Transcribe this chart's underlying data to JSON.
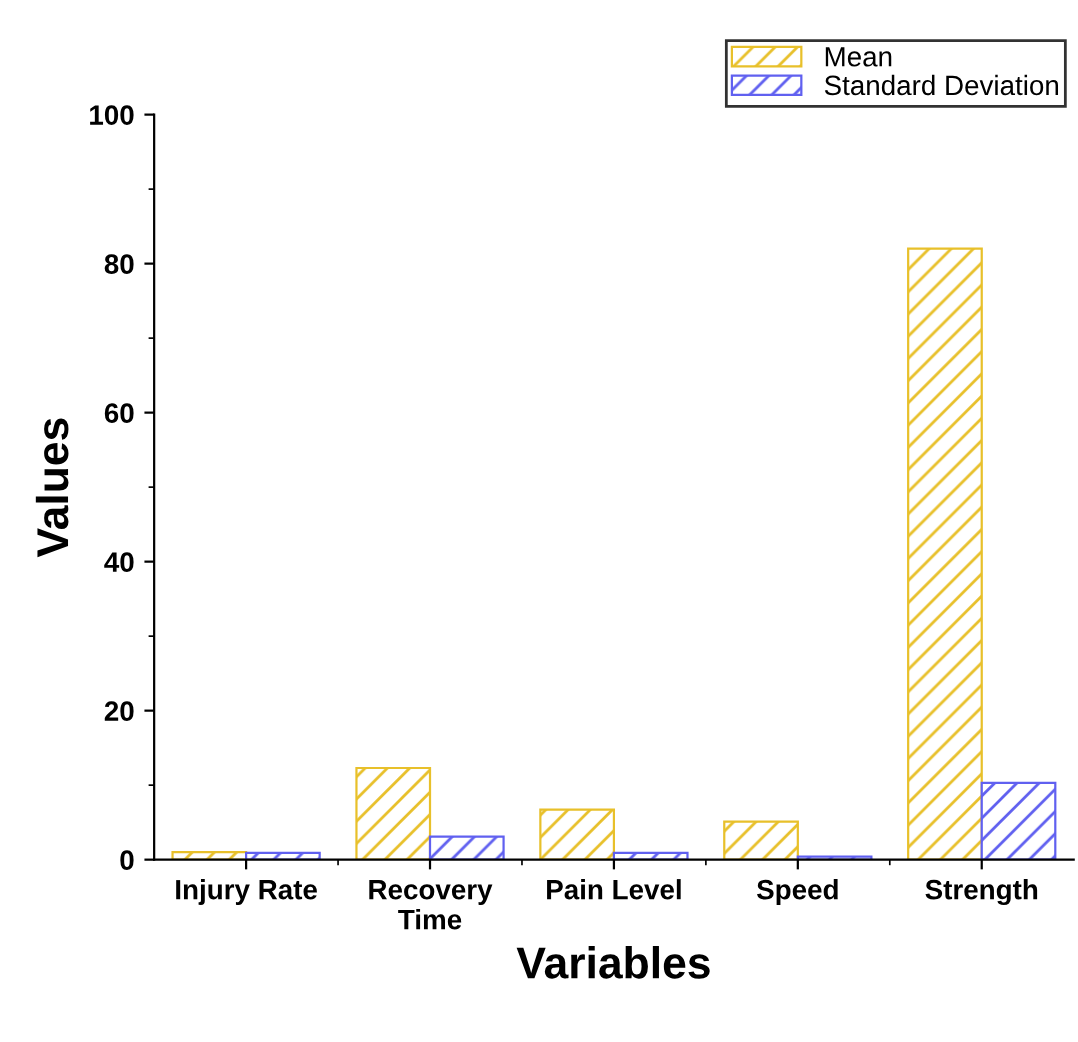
{
  "chart_data": {
    "type": "bar",
    "xlabel": "Variables",
    "ylabel": "Values",
    "categories": [
      "Injury Rate",
      "Recovery\nTime",
      "Pain Level",
      "Speed",
      "Strength"
    ],
    "series": [
      {
        "name": "Mean",
        "color": "#e8c02a",
        "values": [
          1.0,
          12.3,
          6.7,
          5.1,
          82.0
        ]
      },
      {
        "name": "Standard Deviation",
        "color": "#6060f0",
        "values": [
          0.9,
          3.1,
          0.9,
          0.4,
          10.3
        ]
      }
    ],
    "ylim": [
      0,
      100
    ],
    "yticks": [
      0,
      20,
      40,
      60,
      80,
      100
    ],
    "grid": false,
    "legend": "top right"
  }
}
